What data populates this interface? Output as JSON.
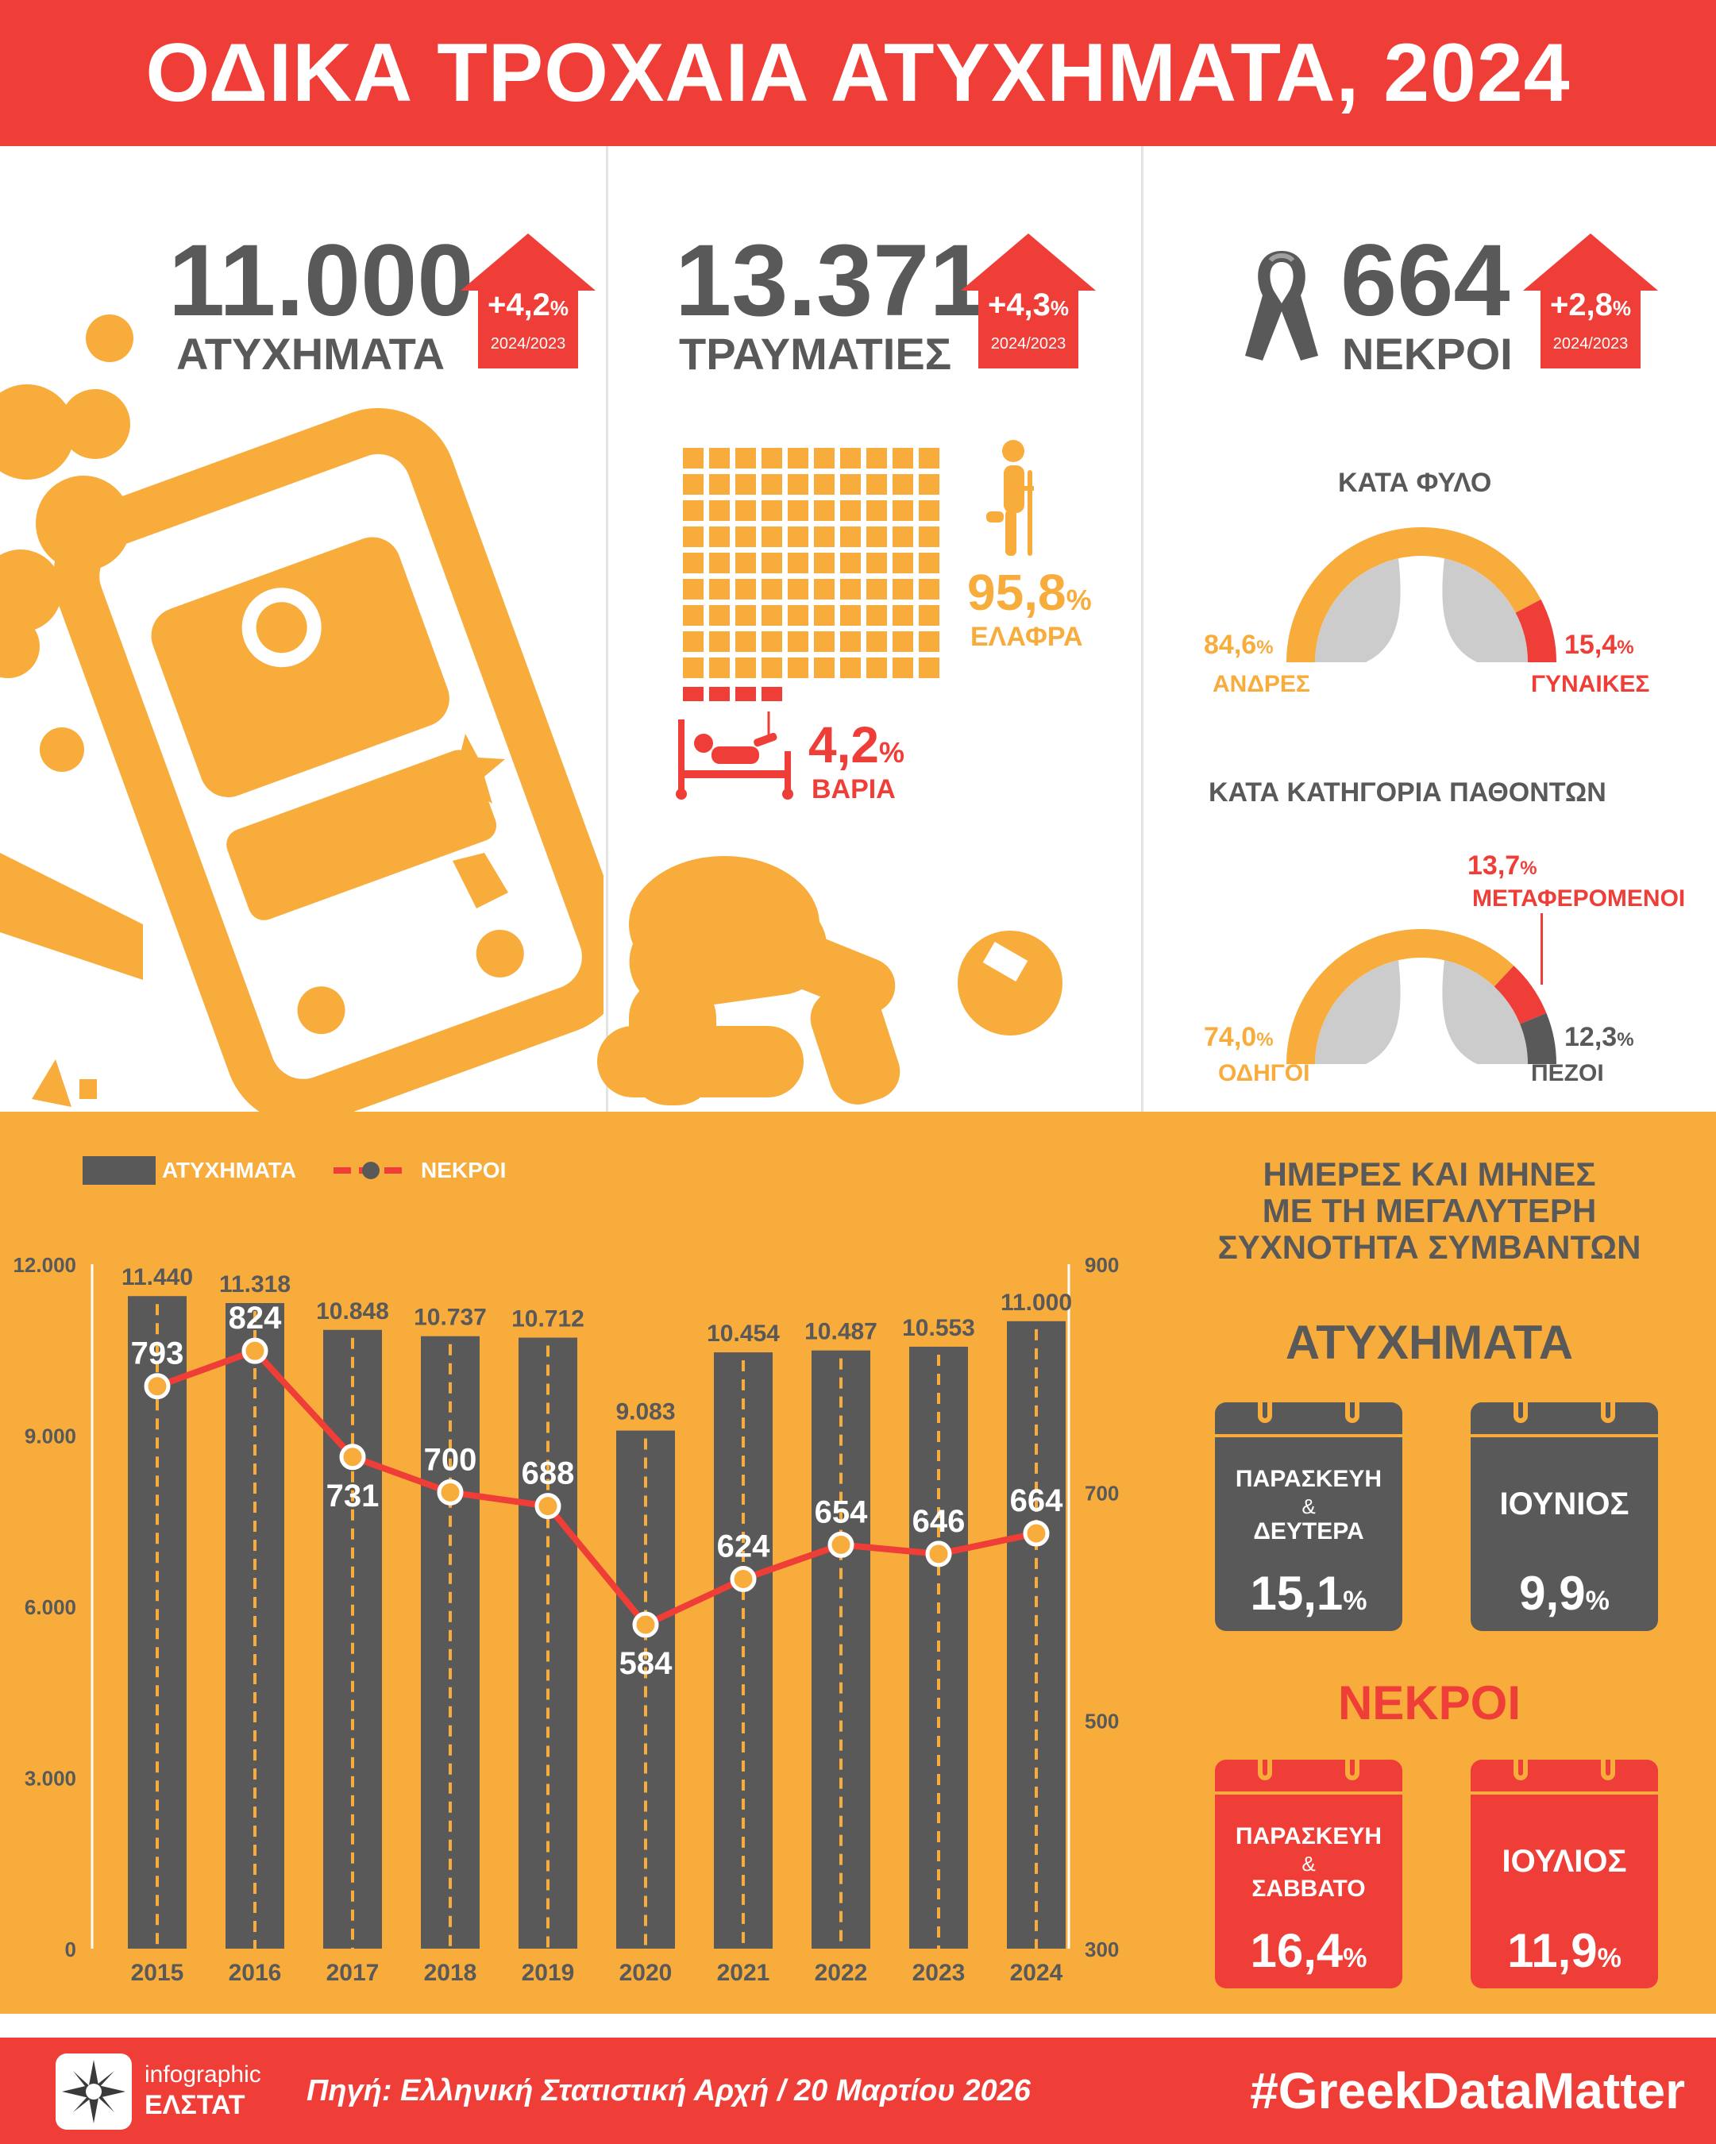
{
  "header": {
    "title": "ΟΔΙΚΑ ΤΡΟΧΑΙΑ ΑΤΥΧΗΜΑΤΑ, 2024"
  },
  "stats": {
    "accidents": {
      "value": "11.000",
      "label": "ΑΤΥΧΗΜΑΤΑ",
      "change": "+4,2",
      "period": "2024/2023"
    },
    "injured": {
      "value": "13.371",
      "label": "ΤΡΑΥΜΑΤΙΕΣ",
      "change": "+4,3",
      "period": "2024/2023"
    },
    "deaths": {
      "value": "664",
      "label": "ΝΕΚΡΟΙ",
      "change": "+2,8",
      "period": "2024/2023"
    }
  },
  "injuries": {
    "light": {
      "pct": "95,8",
      "label": "ΕΛΑΦΡΑ"
    },
    "severe": {
      "pct": "4,2",
      "label": "ΒΑΡΙΑ"
    }
  },
  "by_gender": {
    "title": "ΚΑΤΑ ΦΥΛΟ",
    "men": {
      "pct": "84,6",
      "label": "ΑΝΔΡΕΣ",
      "value": 84.6
    },
    "women": {
      "pct": "15,4",
      "label": "ΓΥΝΑΙΚΕΣ",
      "value": 15.4
    }
  },
  "by_category": {
    "title": "ΚΑΤΑ ΚΑΤΗΓΟΡΙΑ ΠΑΘΟΝΤΩΝ",
    "drivers": {
      "pct": "74,0",
      "label": "ΟΔΗΓΟΙ",
      "value": 74.0
    },
    "passengers": {
      "pct": "13,7",
      "label": "ΜΕΤΑΦΕΡΟΜΕΝΟΙ",
      "value": 13.7
    },
    "pedestrians": {
      "pct": "12,3",
      "label": "ΠΕΖΟΙ",
      "value": 12.3
    }
  },
  "chart_data": {
    "type": "bar",
    "legend": [
      "ΑΤΥΧΗΜΑΤΑ",
      "ΝΕΚΡΟΙ"
    ],
    "categories": [
      "2015",
      "2016",
      "2017",
      "2018",
      "2019",
      "2020",
      "2021",
      "2022",
      "2023",
      "2024"
    ],
    "series": [
      {
        "name": "ΑΤΥΧΗΜΑΤΑ",
        "type": "bar",
        "axis": "left",
        "values": [
          11440,
          11318,
          10848,
          10737,
          10712,
          9083,
          10454,
          10487,
          10553,
          11000
        ],
        "labels": [
          "11.440",
          "11.318",
          "10.848",
          "10.737",
          "10.712",
          "9.083",
          "10.454",
          "10.487",
          "10.553",
          "11.000"
        ]
      },
      {
        "name": "ΝΕΚΡΟΙ",
        "type": "line",
        "axis": "right",
        "values": [
          793,
          824,
          731,
          700,
          688,
          584,
          624,
          654,
          646,
          664
        ],
        "labels": [
          "793",
          "824",
          "731",
          "700",
          "688",
          "584",
          "624",
          "654",
          "646",
          "664"
        ]
      }
    ],
    "ylim": [
      0,
      12000
    ],
    "y2lim": [
      300,
      900
    ],
    "yticks": [
      "0",
      "3.000",
      "6.000",
      "9.000",
      "12.000"
    ],
    "y2ticks": [
      "300",
      "500",
      "700",
      "900"
    ],
    "colors": {
      "bars": "#595959",
      "line": "#ee3e37",
      "labels": "#ffffff"
    }
  },
  "frequency": {
    "title_lines": [
      "ΗΜΕΡΕΣ ΚΑΙ ΜΗΝΕΣ",
      "ΜΕ ΤΗ ΜΕΓΑΛΥΤΕΡΗ",
      "ΣΥΧΝΟΤΗΤΑ ΣΥΜΒΑΝΤΩΝ"
    ],
    "accidents": {
      "heading": "ΑΤΥΧΗΜΑΤΑ",
      "days": {
        "line1": "ΠΑΡΑΣΚΕΥΗ",
        "amp": "&",
        "line2": "ΔΕΥΤΕΡΑ",
        "pct": "15,1"
      },
      "month": {
        "name": "ΙΟΥΝΙΟΣ",
        "pct": "9,9"
      }
    },
    "deaths": {
      "heading": "ΝΕΚΡΟΙ",
      "days": {
        "line1": "ΠΑΡΑΣΚΕΥΗ",
        "amp": "&",
        "line2": "ΣΑΒΒΑΤΟ",
        "pct": "16,4"
      },
      "month": {
        "name": "ΙΟΥΛΙΟΣ",
        "pct": "11,9"
      }
    }
  },
  "footer": {
    "logo_top": "infographic",
    "logo_bottom": "ΕΛΣΤΑΤ",
    "source": "Πηγή: Ελληνική Στατιστική Αρχή / 20 Μαρτίου 2026",
    "hashtag": "#GreekDataMatter"
  },
  "colors": {
    "red": "#ee3e37",
    "orange": "#f7ac3c",
    "gray": "#595959",
    "lightgray": "#cccccc"
  },
  "icons": [
    "car-crash-icon",
    "black-ribbon-icon",
    "crutch-person-icon",
    "hospital-bed-icon",
    "kneeling-person-icon",
    "steering-wheel-icon",
    "calendar-icon",
    "elstat-logo"
  ]
}
